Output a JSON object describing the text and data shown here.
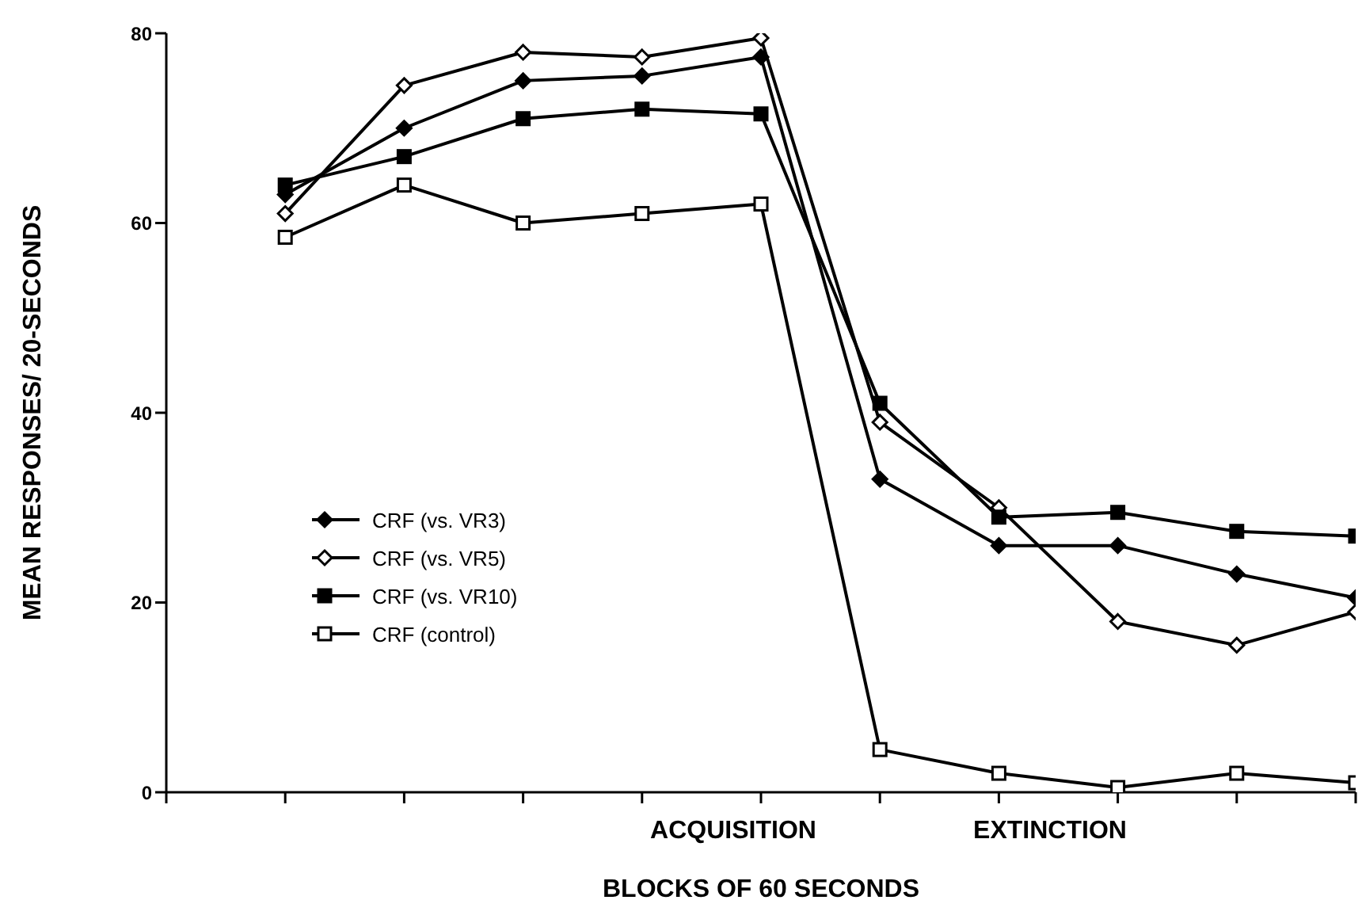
{
  "chart_data": {
    "type": "line",
    "xlabel": "BLOCKS OF 60 SECONDS",
    "ylabel": "MEAN RESPONSES/ 20-SECONDS",
    "categories": [
      null,
      null,
      null,
      null,
      null,
      null,
      null,
      null,
      null,
      null
    ],
    "ylim": [
      0,
      80
    ],
    "yticks": [
      0,
      20,
      40,
      60,
      80
    ],
    "legend": "left",
    "line_style": "solid",
    "annotations": [
      "ACQUISITION",
      "EXTINCTION"
    ],
    "series": [
      {
        "name": "CRF (vs. VR3)",
        "color": "#000000",
        "marker": "diamond",
        "values": [
          63,
          70,
          75,
          75.5,
          77.5,
          33,
          26,
          26,
          23,
          20.5
        ]
      },
      {
        "name": "CRF (vs. VR5)",
        "color": "#000000",
        "marker": "diamond",
        "values": [
          61,
          74.5,
          78,
          77.5,
          79.5,
          39,
          30,
          18,
          15.5,
          19
        ]
      },
      {
        "name": "CRF (vs. VR10)",
        "color": "#000000",
        "marker": "square",
        "values": [
          64,
          67,
          71,
          72,
          71.5,
          41,
          29,
          29.5,
          27.5,
          27
        ]
      },
      {
        "name": "CRF (control)",
        "color": "#000000",
        "marker": "square",
        "values": [
          58.5,
          64,
          60,
          61,
          62,
          4.5,
          2,
          0.5,
          2,
          1
        ]
      }
    ]
  }
}
